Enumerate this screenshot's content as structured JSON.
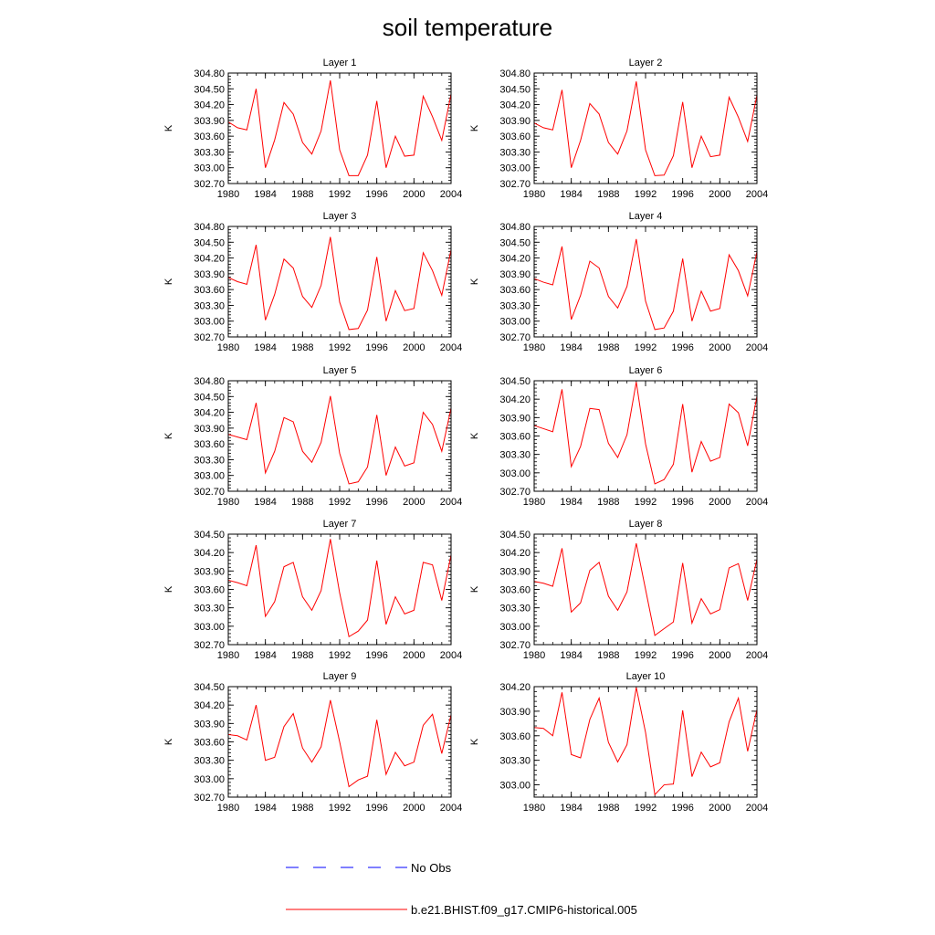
{
  "title": "soil temperature",
  "colors": {
    "model": "#ff0000",
    "obs": "#0000ff",
    "axis": "#000000"
  },
  "legend": {
    "obs_label": "No Obs",
    "model_label": "b.e21.BHIST.f09_g17.CMIP6-historical.005"
  },
  "chart_data": [
    {
      "type": "line",
      "title": "Layer 1",
      "ylabel": "K",
      "xlim": [
        1980,
        2004
      ],
      "ylim": [
        302.7,
        304.8
      ],
      "xticks": [
        "1980",
        "1984",
        "1988",
        "1992",
        "1996",
        "2000",
        "2004"
      ],
      "yticks": [
        "302.70",
        "303.00",
        "303.30",
        "303.60",
        "303.90",
        "304.20",
        "304.50",
        "304.80"
      ],
      "series": [
        {
          "name": "b.e21.BHIST.f09_g17.CMIP6-historical.005",
          "x": [
            1980,
            1981,
            1982,
            1983,
            1984,
            1985,
            1986,
            1987,
            1988,
            1989,
            1990,
            1991,
            1992,
            1993,
            1994,
            1995,
            1996,
            1997,
            1998,
            1999,
            2000,
            2001,
            2002,
            2003,
            2004
          ],
          "values": [
            303.87,
            303.76,
            303.72,
            304.5,
            303.0,
            303.53,
            304.24,
            304.02,
            303.48,
            303.26,
            303.7,
            304.66,
            303.34,
            302.85,
            302.85,
            303.24,
            304.27,
            303.0,
            303.6,
            303.22,
            303.24,
            304.36,
            303.97,
            303.52,
            304.4
          ]
        }
      ]
    },
    {
      "type": "line",
      "title": "Layer 2",
      "ylabel": "K",
      "xlim": [
        1980,
        2004
      ],
      "ylim": [
        302.7,
        304.8
      ],
      "xticks": [
        "1980",
        "1984",
        "1988",
        "1992",
        "1996",
        "2000",
        "2004"
      ],
      "yticks": [
        "302.70",
        "303.00",
        "303.30",
        "303.60",
        "303.90",
        "304.20",
        "304.50",
        "304.80"
      ],
      "series": [
        {
          "name": "b.e21.BHIST.f09_g17.CMIP6-historical.005",
          "x": [
            1980,
            1981,
            1982,
            1983,
            1984,
            1985,
            1986,
            1987,
            1988,
            1989,
            1990,
            1991,
            1992,
            1993,
            1994,
            1995,
            1996,
            1997,
            1998,
            1999,
            2000,
            2001,
            2002,
            2003,
            2004
          ],
          "values": [
            303.85,
            303.76,
            303.72,
            304.48,
            303.0,
            303.52,
            304.22,
            304.02,
            303.48,
            303.26,
            303.7,
            304.64,
            303.34,
            302.85,
            302.86,
            303.23,
            304.25,
            303.0,
            303.6,
            303.21,
            303.24,
            304.34,
            303.96,
            303.5,
            304.38
          ]
        }
      ]
    },
    {
      "type": "line",
      "title": "Layer 3",
      "ylabel": "K",
      "xlim": [
        1980,
        2004
      ],
      "ylim": [
        302.7,
        304.8
      ],
      "xticks": [
        "1980",
        "1984",
        "1988",
        "1992",
        "1996",
        "2000",
        "2004"
      ],
      "yticks": [
        "302.70",
        "303.00",
        "303.30",
        "303.60",
        "303.90",
        "304.20",
        "304.50",
        "304.80"
      ],
      "series": [
        {
          "name": "b.e21.BHIST.f09_g17.CMIP6-historical.005",
          "x": [
            1980,
            1981,
            1982,
            1983,
            1984,
            1985,
            1986,
            1987,
            1988,
            1989,
            1990,
            1991,
            1992,
            1993,
            1994,
            1995,
            1996,
            1997,
            1998,
            1999,
            2000,
            2001,
            2002,
            2003,
            2004
          ],
          "values": [
            303.83,
            303.75,
            303.7,
            304.45,
            303.02,
            303.51,
            304.18,
            304.01,
            303.47,
            303.26,
            303.68,
            304.6,
            303.36,
            302.84,
            302.86,
            303.21,
            304.22,
            303.0,
            303.58,
            303.2,
            303.24,
            304.3,
            303.96,
            303.49,
            304.36
          ]
        }
      ]
    },
    {
      "type": "line",
      "title": "Layer 4",
      "ylabel": "K",
      "xlim": [
        1980,
        2004
      ],
      "ylim": [
        302.7,
        304.8
      ],
      "xticks": [
        "1980",
        "1984",
        "1988",
        "1992",
        "1996",
        "2000",
        "2004"
      ],
      "yticks": [
        "302.70",
        "303.00",
        "303.30",
        "303.60",
        "303.90",
        "304.20",
        "304.50",
        "304.80"
      ],
      "series": [
        {
          "name": "b.e21.BHIST.f09_g17.CMIP6-historical.005",
          "x": [
            1980,
            1981,
            1982,
            1983,
            1984,
            1985,
            1986,
            1987,
            1988,
            1989,
            1990,
            1991,
            1992,
            1993,
            1994,
            1995,
            1996,
            1997,
            1998,
            1999,
            2000,
            2001,
            2002,
            2003,
            2004
          ],
          "values": [
            303.81,
            303.74,
            303.69,
            304.42,
            303.03,
            303.49,
            304.14,
            304.01,
            303.47,
            303.25,
            303.66,
            304.56,
            303.38,
            302.84,
            302.87,
            303.19,
            304.19,
            303.0,
            303.57,
            303.19,
            303.24,
            304.26,
            303.96,
            303.48,
            304.32
          ]
        }
      ]
    },
    {
      "type": "line",
      "title": "Layer 5",
      "ylabel": "K",
      "xlim": [
        1980,
        2004
      ],
      "ylim": [
        302.7,
        304.8
      ],
      "xticks": [
        "1980",
        "1984",
        "1988",
        "1992",
        "1996",
        "2000",
        "2004"
      ],
      "yticks": [
        "302.70",
        "303.00",
        "303.30",
        "303.60",
        "303.90",
        "304.20",
        "304.50",
        "304.80"
      ],
      "series": [
        {
          "name": "b.e21.BHIST.f09_g17.CMIP6-historical.005",
          "x": [
            1980,
            1981,
            1982,
            1983,
            1984,
            1985,
            1986,
            1987,
            1988,
            1989,
            1990,
            1991,
            1992,
            1993,
            1994,
            1995,
            1996,
            1997,
            1998,
            1999,
            2000,
            2001,
            2002,
            2003,
            2004
          ],
          "values": [
            303.78,
            303.73,
            303.68,
            304.38,
            303.05,
            303.46,
            304.1,
            304.02,
            303.46,
            303.25,
            303.63,
            304.51,
            303.42,
            302.84,
            302.88,
            303.16,
            304.15,
            303.0,
            303.54,
            303.18,
            303.24,
            304.2,
            303.97,
            303.46,
            304.28
          ]
        }
      ]
    },
    {
      "type": "line",
      "title": "Layer 6",
      "ylabel": "K",
      "xlim": [
        1980,
        2004
      ],
      "ylim": [
        302.7,
        304.5
      ],
      "xticks": [
        "1980",
        "1984",
        "1988",
        "1992",
        "1996",
        "2000",
        "2004"
      ],
      "yticks": [
        "302.70",
        "303.00",
        "303.30",
        "303.60",
        "303.90",
        "304.20",
        "304.50"
      ],
      "series": [
        {
          "name": "b.e21.BHIST.f09_g17.CMIP6-historical.005",
          "x": [
            1980,
            1981,
            1982,
            1983,
            1984,
            1985,
            1986,
            1987,
            1988,
            1989,
            1990,
            1991,
            1992,
            1993,
            1994,
            1995,
            1996,
            1997,
            1998,
            1999,
            2000,
            2001,
            2002,
            2003,
            2004
          ],
          "values": [
            303.77,
            303.72,
            303.67,
            304.36,
            303.1,
            303.43,
            304.05,
            304.03,
            303.48,
            303.25,
            303.62,
            304.48,
            303.47,
            302.82,
            302.89,
            303.14,
            304.12,
            303.01,
            303.51,
            303.19,
            303.25,
            304.12,
            303.98,
            303.44,
            304.25
          ]
        }
      ]
    },
    {
      "type": "line",
      "title": "Layer 7",
      "ylabel": "K",
      "xlim": [
        1980,
        2004
      ],
      "ylim": [
        302.7,
        304.5
      ],
      "xticks": [
        "1980",
        "1984",
        "1988",
        "1992",
        "1996",
        "2000",
        "2004"
      ],
      "yticks": [
        "302.70",
        "303.00",
        "303.30",
        "303.60",
        "303.90",
        "304.20",
        "304.50"
      ],
      "series": [
        {
          "name": "b.e21.BHIST.f09_g17.CMIP6-historical.005",
          "x": [
            1980,
            1981,
            1982,
            1983,
            1984,
            1985,
            1986,
            1987,
            1988,
            1989,
            1990,
            1991,
            1992,
            1993,
            1994,
            1995,
            1996,
            1997,
            1998,
            1999,
            2000,
            2001,
            2002,
            2003,
            2004
          ],
          "values": [
            303.75,
            303.71,
            303.66,
            304.32,
            303.16,
            303.4,
            303.97,
            304.04,
            303.48,
            303.26,
            303.58,
            304.42,
            303.54,
            302.83,
            302.92,
            303.1,
            304.07,
            303.03,
            303.48,
            303.2,
            303.26,
            304.04,
            304.0,
            303.42,
            304.16
          ]
        }
      ]
    },
    {
      "type": "line",
      "title": "Layer 8",
      "ylabel": "K",
      "xlim": [
        1980,
        2004
      ],
      "ylim": [
        302.7,
        304.5
      ],
      "xticks": [
        "1980",
        "1984",
        "1988",
        "1992",
        "1996",
        "2000",
        "2004"
      ],
      "yticks": [
        "302.70",
        "303.00",
        "303.30",
        "303.60",
        "303.90",
        "304.20",
        "304.50"
      ],
      "series": [
        {
          "name": "b.e21.BHIST.f09_g17.CMIP6-historical.005",
          "x": [
            1980,
            1981,
            1982,
            1983,
            1984,
            1985,
            1986,
            1987,
            1988,
            1989,
            1990,
            1991,
            1992,
            1993,
            1994,
            1995,
            1996,
            1997,
            1998,
            1999,
            2000,
            2001,
            2002,
            2003,
            2004
          ],
          "values": [
            303.73,
            303.7,
            303.65,
            304.27,
            303.23,
            303.38,
            303.91,
            304.04,
            303.49,
            303.26,
            303.56,
            304.35,
            303.6,
            302.85,
            302.96,
            303.07,
            304.03,
            303.05,
            303.45,
            303.2,
            303.27,
            303.95,
            304.02,
            303.42,
            304.09
          ]
        }
      ]
    },
    {
      "type": "line",
      "title": "Layer 9",
      "ylabel": "K",
      "xlim": [
        1980,
        2004
      ],
      "ylim": [
        302.7,
        304.5
      ],
      "xticks": [
        "1980",
        "1984",
        "1988",
        "1992",
        "1996",
        "2000",
        "2004"
      ],
      "yticks": [
        "302.70",
        "303.00",
        "303.30",
        "303.60",
        "303.90",
        "304.20",
        "304.50"
      ],
      "series": [
        {
          "name": "b.e21.BHIST.f09_g17.CMIP6-historical.005",
          "x": [
            1980,
            1981,
            1982,
            1983,
            1984,
            1985,
            1986,
            1987,
            1988,
            1989,
            1990,
            1991,
            1992,
            1993,
            1994,
            1995,
            1996,
            1997,
            1998,
            1999,
            2000,
            2001,
            2002,
            2003,
            2004
          ],
          "values": [
            303.72,
            303.7,
            303.63,
            304.2,
            303.3,
            303.35,
            303.85,
            304.06,
            303.5,
            303.27,
            303.52,
            304.28,
            303.6,
            302.87,
            302.98,
            303.04,
            303.96,
            303.07,
            303.43,
            303.21,
            303.27,
            303.87,
            304.05,
            303.41,
            304.04
          ]
        }
      ]
    },
    {
      "type": "line",
      "title": "Layer 10",
      "ylabel": "K",
      "xlim": [
        1980,
        2004
      ],
      "ylim": [
        302.85,
        304.2
      ],
      "xticks": [
        "1980",
        "1984",
        "1988",
        "1992",
        "1996",
        "2000",
        "2004"
      ],
      "yticks": [
        "303.00",
        "303.30",
        "303.60",
        "303.90",
        "304.20"
      ],
      "series": [
        {
          "name": "b.e21.BHIST.f09_g17.CMIP6-historical.005",
          "x": [
            1980,
            1981,
            1982,
            1983,
            1984,
            1985,
            1986,
            1987,
            1988,
            1989,
            1990,
            1991,
            1992,
            1993,
            1994,
            1995,
            1996,
            1997,
            1998,
            1999,
            2000,
            2001,
            2002,
            2003,
            2004
          ],
          "values": [
            303.7,
            303.69,
            303.6,
            304.13,
            303.37,
            303.33,
            303.8,
            304.06,
            303.52,
            303.28,
            303.49,
            304.19,
            303.64,
            302.88,
            303.0,
            303.01,
            303.91,
            303.1,
            303.4,
            303.22,
            303.27,
            303.77,
            304.06,
            303.41,
            303.92
          ]
        }
      ]
    }
  ]
}
